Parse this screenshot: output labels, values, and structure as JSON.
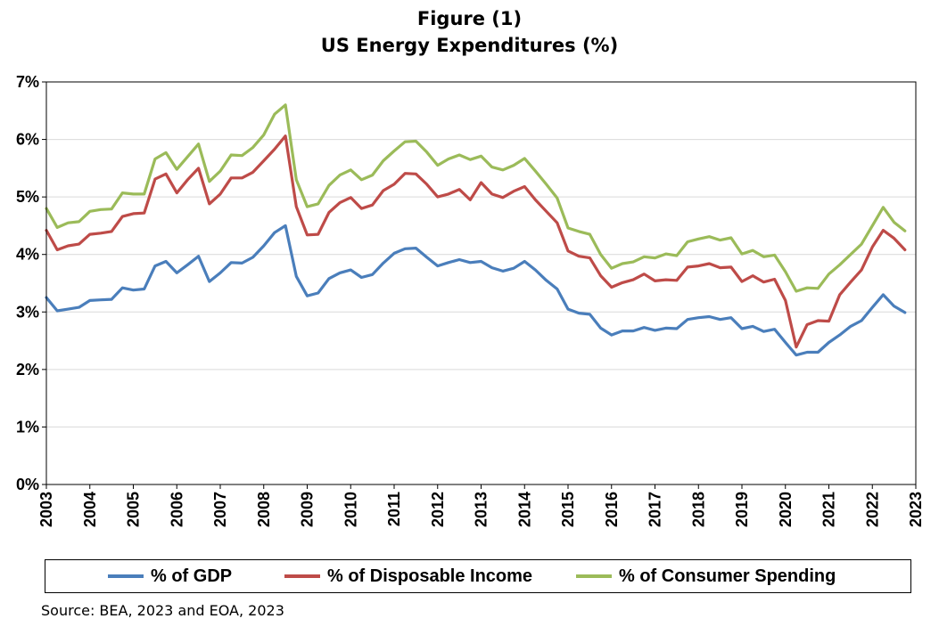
{
  "figure": {
    "title_line1": "Figure (1)",
    "title_line2": "US Energy Expenditures (%)",
    "source": "Source: BEA, 2023 and EOA, 2023"
  },
  "chart_data": {
    "type": "line",
    "title": "Figure (1) US Energy Expenditures (%)",
    "xlabel": "",
    "ylabel": "",
    "xlim": [
      2003,
      2023
    ],
    "ylim": [
      0,
      7
    ],
    "x_ticks": [
      "2003",
      "2004",
      "2005",
      "2006",
      "2007",
      "2008",
      "2009",
      "2010",
      "2011",
      "2012",
      "2013",
      "2014",
      "2015",
      "2016",
      "2017",
      "2018",
      "2019",
      "2020",
      "2021",
      "2022",
      "2023"
    ],
    "y_ticks": [
      "0%",
      "1%",
      "2%",
      "3%",
      "4%",
      "5%",
      "6%",
      "7%"
    ],
    "grid": true,
    "legend_position": "bottom",
    "series": [
      {
        "name": "% of GDP",
        "color": "#4a7ebb",
        "points": [
          [
            2003.0,
            3.25
          ],
          [
            2003.25,
            3.02
          ],
          [
            2003.5,
            3.05
          ],
          [
            2003.75,
            3.08
          ],
          [
            2004.0,
            3.2
          ],
          [
            2004.25,
            3.21
          ],
          [
            2004.5,
            3.22
          ],
          [
            2004.75,
            3.42
          ],
          [
            2005.0,
            3.38
          ],
          [
            2005.25,
            3.4
          ],
          [
            2005.5,
            3.8
          ],
          [
            2005.75,
            3.88
          ],
          [
            2006.0,
            3.68
          ],
          [
            2006.25,
            3.82
          ],
          [
            2006.5,
            3.97
          ],
          [
            2006.75,
            3.53
          ],
          [
            2007.0,
            3.68
          ],
          [
            2007.25,
            3.86
          ],
          [
            2007.5,
            3.85
          ],
          [
            2007.75,
            3.95
          ],
          [
            2008.0,
            4.15
          ],
          [
            2008.25,
            4.38
          ],
          [
            2008.5,
            4.5
          ],
          [
            2008.75,
            3.62
          ],
          [
            2009.0,
            3.28
          ],
          [
            2009.25,
            3.33
          ],
          [
            2009.5,
            3.58
          ],
          [
            2009.75,
            3.68
          ],
          [
            2010.0,
            3.73
          ],
          [
            2010.25,
            3.6
          ],
          [
            2010.5,
            3.65
          ],
          [
            2010.75,
            3.85
          ],
          [
            2011.0,
            4.02
          ],
          [
            2011.25,
            4.1
          ],
          [
            2011.5,
            4.11
          ],
          [
            2011.75,
            3.95
          ],
          [
            2012.0,
            3.8
          ],
          [
            2012.25,
            3.86
          ],
          [
            2012.5,
            3.91
          ],
          [
            2012.75,
            3.86
          ],
          [
            2013.0,
            3.88
          ],
          [
            2013.25,
            3.77
          ],
          [
            2013.5,
            3.71
          ],
          [
            2013.75,
            3.76
          ],
          [
            2014.0,
            3.88
          ],
          [
            2014.25,
            3.73
          ],
          [
            2014.5,
            3.55
          ],
          [
            2014.75,
            3.4
          ],
          [
            2015.0,
            3.05
          ],
          [
            2015.25,
            2.98
          ],
          [
            2015.5,
            2.96
          ],
          [
            2015.75,
            2.72
          ],
          [
            2016.0,
            2.6
          ],
          [
            2016.25,
            2.67
          ],
          [
            2016.5,
            2.67
          ],
          [
            2016.75,
            2.73
          ],
          [
            2017.0,
            2.68
          ],
          [
            2017.25,
            2.72
          ],
          [
            2017.5,
            2.71
          ],
          [
            2017.75,
            2.87
          ],
          [
            2018.0,
            2.9
          ],
          [
            2018.25,
            2.92
          ],
          [
            2018.5,
            2.87
          ],
          [
            2018.75,
            2.9
          ],
          [
            2019.0,
            2.71
          ],
          [
            2019.25,
            2.75
          ],
          [
            2019.5,
            2.66
          ],
          [
            2019.75,
            2.7
          ],
          [
            2020.0,
            2.47
          ],
          [
            2020.25,
            2.25
          ],
          [
            2020.5,
            2.3
          ],
          [
            2020.75,
            2.3
          ],
          [
            2021.0,
            2.47
          ],
          [
            2021.25,
            2.6
          ],
          [
            2021.5,
            2.75
          ],
          [
            2021.75,
            2.85
          ],
          [
            2022.0,
            3.08
          ],
          [
            2022.25,
            3.3
          ],
          [
            2022.5,
            3.1
          ],
          [
            2022.75,
            2.99
          ]
        ]
      },
      {
        "name": "% of Disposable Income",
        "color": "#be4b48",
        "points": [
          [
            2003.0,
            4.42
          ],
          [
            2003.25,
            4.08
          ],
          [
            2003.5,
            4.15
          ],
          [
            2003.75,
            4.18
          ],
          [
            2004.0,
            4.35
          ],
          [
            2004.25,
            4.37
          ],
          [
            2004.5,
            4.4
          ],
          [
            2004.75,
            4.66
          ],
          [
            2005.0,
            4.71
          ],
          [
            2005.25,
            4.72
          ],
          [
            2005.5,
            5.31
          ],
          [
            2005.75,
            5.4
          ],
          [
            2006.0,
            5.07
          ],
          [
            2006.25,
            5.3
          ],
          [
            2006.5,
            5.5
          ],
          [
            2006.75,
            4.88
          ],
          [
            2007.0,
            5.05
          ],
          [
            2007.25,
            5.33
          ],
          [
            2007.5,
            5.33
          ],
          [
            2007.75,
            5.43
          ],
          [
            2008.0,
            5.63
          ],
          [
            2008.25,
            5.83
          ],
          [
            2008.5,
            6.06
          ],
          [
            2008.75,
            4.83
          ],
          [
            2009.0,
            4.34
          ],
          [
            2009.25,
            4.35
          ],
          [
            2009.5,
            4.73
          ],
          [
            2009.75,
            4.9
          ],
          [
            2010.0,
            4.99
          ],
          [
            2010.25,
            4.8
          ],
          [
            2010.5,
            4.86
          ],
          [
            2010.75,
            5.11
          ],
          [
            2011.0,
            5.22
          ],
          [
            2011.25,
            5.41
          ],
          [
            2011.5,
            5.4
          ],
          [
            2011.75,
            5.22
          ],
          [
            2012.0,
            5.0
          ],
          [
            2012.25,
            5.05
          ],
          [
            2012.5,
            5.13
          ],
          [
            2012.75,
            4.95
          ],
          [
            2013.0,
            5.25
          ],
          [
            2013.25,
            5.05
          ],
          [
            2013.5,
            4.99
          ],
          [
            2013.75,
            5.1
          ],
          [
            2014.0,
            5.18
          ],
          [
            2014.25,
            4.95
          ],
          [
            2014.5,
            4.75
          ],
          [
            2014.75,
            4.55
          ],
          [
            2015.0,
            4.06
          ],
          [
            2015.25,
            3.97
          ],
          [
            2015.5,
            3.94
          ],
          [
            2015.75,
            3.63
          ],
          [
            2016.0,
            3.43
          ],
          [
            2016.25,
            3.51
          ],
          [
            2016.5,
            3.56
          ],
          [
            2016.75,
            3.66
          ],
          [
            2017.0,
            3.54
          ],
          [
            2017.25,
            3.56
          ],
          [
            2017.5,
            3.55
          ],
          [
            2017.75,
            3.78
          ],
          [
            2018.0,
            3.8
          ],
          [
            2018.25,
            3.84
          ],
          [
            2018.5,
            3.77
          ],
          [
            2018.75,
            3.78
          ],
          [
            2019.0,
            3.53
          ],
          [
            2019.25,
            3.63
          ],
          [
            2019.5,
            3.52
          ],
          [
            2019.75,
            3.57
          ],
          [
            2020.0,
            3.2
          ],
          [
            2020.25,
            2.39
          ],
          [
            2020.5,
            2.78
          ],
          [
            2020.75,
            2.85
          ],
          [
            2021.0,
            2.84
          ],
          [
            2021.25,
            3.3
          ],
          [
            2021.5,
            3.52
          ],
          [
            2021.75,
            3.73
          ],
          [
            2022.0,
            4.13
          ],
          [
            2022.25,
            4.42
          ],
          [
            2022.5,
            4.28
          ],
          [
            2022.75,
            4.08
          ]
        ]
      },
      {
        "name": "% of Consumer Spending",
        "color": "#9bbb59",
        "points": [
          [
            2003.0,
            4.8
          ],
          [
            2003.25,
            4.47
          ],
          [
            2003.5,
            4.55
          ],
          [
            2003.75,
            4.57
          ],
          [
            2004.0,
            4.75
          ],
          [
            2004.25,
            4.78
          ],
          [
            2004.5,
            4.79
          ],
          [
            2004.75,
            5.07
          ],
          [
            2005.0,
            5.05
          ],
          [
            2005.25,
            5.05
          ],
          [
            2005.5,
            5.66
          ],
          [
            2005.75,
            5.77
          ],
          [
            2006.0,
            5.48
          ],
          [
            2006.25,
            5.7
          ],
          [
            2006.5,
            5.92
          ],
          [
            2006.75,
            5.27
          ],
          [
            2007.0,
            5.45
          ],
          [
            2007.25,
            5.73
          ],
          [
            2007.5,
            5.72
          ],
          [
            2007.75,
            5.86
          ],
          [
            2008.0,
            6.08
          ],
          [
            2008.25,
            6.44
          ],
          [
            2008.5,
            6.6
          ],
          [
            2008.75,
            5.3
          ],
          [
            2009.0,
            4.83
          ],
          [
            2009.25,
            4.88
          ],
          [
            2009.5,
            5.2
          ],
          [
            2009.75,
            5.38
          ],
          [
            2010.0,
            5.47
          ],
          [
            2010.25,
            5.3
          ],
          [
            2010.5,
            5.38
          ],
          [
            2010.75,
            5.63
          ],
          [
            2011.0,
            5.8
          ],
          [
            2011.25,
            5.96
          ],
          [
            2011.5,
            5.97
          ],
          [
            2011.75,
            5.78
          ],
          [
            2012.0,
            5.55
          ],
          [
            2012.25,
            5.66
          ],
          [
            2012.5,
            5.73
          ],
          [
            2012.75,
            5.65
          ],
          [
            2013.0,
            5.71
          ],
          [
            2013.25,
            5.52
          ],
          [
            2013.5,
            5.47
          ],
          [
            2013.75,
            5.55
          ],
          [
            2014.0,
            5.67
          ],
          [
            2014.25,
            5.45
          ],
          [
            2014.5,
            5.22
          ],
          [
            2014.75,
            4.98
          ],
          [
            2015.0,
            4.46
          ],
          [
            2015.25,
            4.4
          ],
          [
            2015.5,
            4.35
          ],
          [
            2015.75,
            4.0
          ],
          [
            2016.0,
            3.76
          ],
          [
            2016.25,
            3.84
          ],
          [
            2016.5,
            3.87
          ],
          [
            2016.75,
            3.96
          ],
          [
            2017.0,
            3.94
          ],
          [
            2017.25,
            4.01
          ],
          [
            2017.5,
            3.98
          ],
          [
            2017.75,
            4.22
          ],
          [
            2018.0,
            4.27
          ],
          [
            2018.25,
            4.31
          ],
          [
            2018.5,
            4.25
          ],
          [
            2018.75,
            4.29
          ],
          [
            2019.0,
            4.01
          ],
          [
            2019.25,
            4.07
          ],
          [
            2019.5,
            3.96
          ],
          [
            2019.75,
            3.99
          ],
          [
            2020.0,
            3.7
          ],
          [
            2020.25,
            3.36
          ],
          [
            2020.5,
            3.42
          ],
          [
            2020.75,
            3.41
          ],
          [
            2021.0,
            3.66
          ],
          [
            2021.25,
            3.82
          ],
          [
            2021.5,
            4.0
          ],
          [
            2021.75,
            4.18
          ],
          [
            2022.0,
            4.5
          ],
          [
            2022.25,
            4.82
          ],
          [
            2022.5,
            4.56
          ],
          [
            2022.75,
            4.41
          ]
        ]
      }
    ]
  }
}
